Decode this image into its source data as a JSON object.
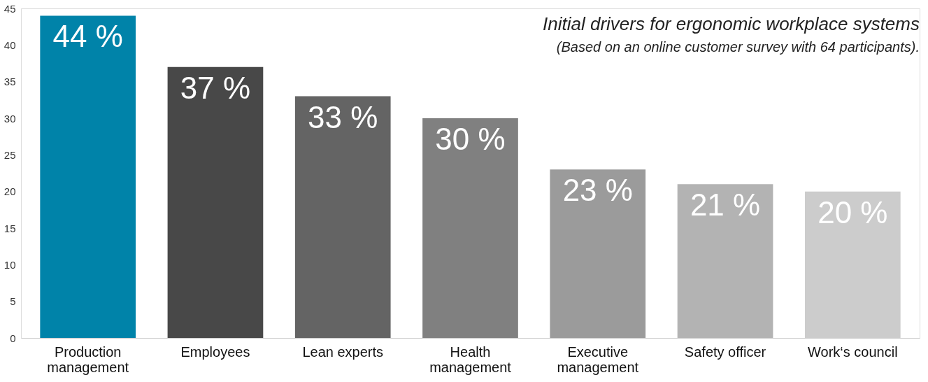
{
  "chart_data": {
    "type": "bar",
    "title": "Initial drivers for ergonomic workplace systems",
    "subtitle": "(Based on an online customer survey with 64 participants).",
    "categories": [
      "Production management",
      "Employees",
      "Lean experts",
      "Health management",
      "Executive management",
      "Safety officer",
      "Work‘s council"
    ],
    "values": [
      44,
      37,
      33,
      30,
      23,
      21,
      20
    ],
    "colors": [
      "#0083a9",
      "#484848",
      "#646464",
      "#808080",
      "#9b9b9b",
      "#b3b3b3",
      "#cccccc"
    ],
    "value_labels": [
      "44 %",
      "37 %",
      "33 %",
      "30 %",
      "23 %",
      "21 %",
      "20 %"
    ],
    "ylim": [
      0,
      45
    ],
    "yticks": [
      0,
      5,
      10,
      15,
      20,
      25,
      30,
      35,
      40,
      45
    ],
    "grid": false
  }
}
